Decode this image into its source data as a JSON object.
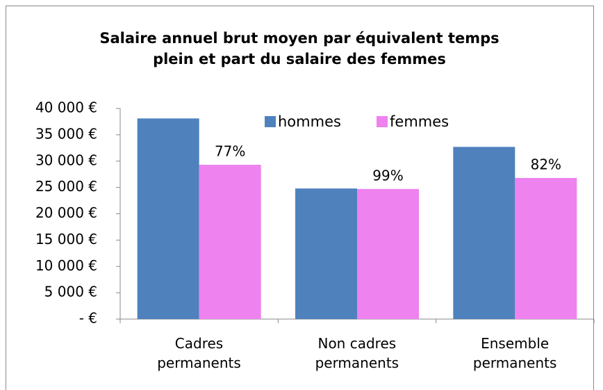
{
  "chart_data": {
    "type": "bar",
    "title": "Salaire annuel brut moyen par équivalent temps\nplein et part du salaire des femmes",
    "categories": [
      "Cadres\npermanents",
      "Non cadres\npermanents",
      "Ensemble\npermanents"
    ],
    "series": [
      {
        "name": "hommes",
        "color": "#4f81bd",
        "values": [
          38100,
          24800,
          32700
        ]
      },
      {
        "name": "femmes",
        "color": "#ee82ee",
        "values": [
          29300,
          24700,
          26800
        ]
      }
    ],
    "annotations": [
      "77%",
      "99%",
      "82%"
    ],
    "ylim": [
      0,
      40000
    ],
    "yticks": [
      {
        "value": 0,
        "label": "-   €"
      },
      {
        "value": 5000,
        "label": "5 000 €"
      },
      {
        "value": 10000,
        "label": "10 000 €"
      },
      {
        "value": 15000,
        "label": "15 000 €"
      },
      {
        "value": 20000,
        "label": "20 000 €"
      },
      {
        "value": 25000,
        "label": "25 000 €"
      },
      {
        "value": 30000,
        "label": "30 000 €"
      },
      {
        "value": 35000,
        "label": "35 000 €"
      },
      {
        "value": 40000,
        "label": "40 000 €"
      }
    ],
    "grid": false,
    "legend": "top"
  }
}
